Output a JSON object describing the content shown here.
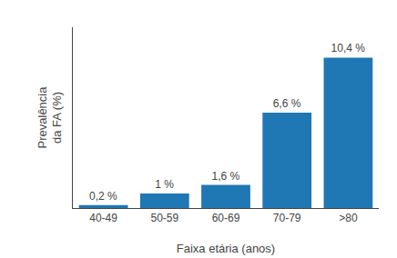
{
  "chart_data": {
    "type": "bar",
    "categories": [
      "40-49",
      "50-59",
      "60-69",
      "70-79",
      ">80"
    ],
    "values": [
      0.2,
      1.0,
      1.6,
      6.6,
      10.4
    ],
    "value_labels": [
      "0,2 %",
      "1 %",
      "1,6 %",
      "6,6 %",
      "10,4 %"
    ],
    "data_labels": true,
    "xlabel": "Faixa etária (anos)",
    "ylabel": "Prevalência\nda FA (%)",
    "ylim": [
      0,
      12.5
    ],
    "tick_labels": "x",
    "grid": false
  }
}
